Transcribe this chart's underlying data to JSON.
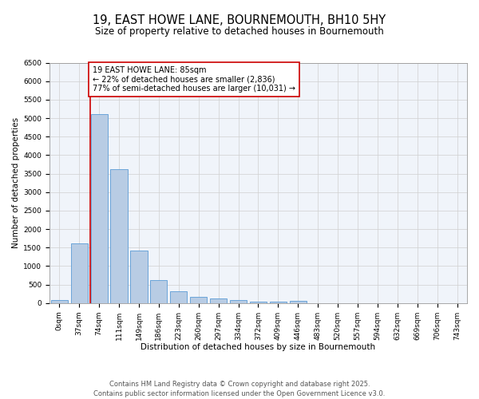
{
  "title_line1": "19, EAST HOWE LANE, BOURNEMOUTH, BH10 5HY",
  "title_line2": "Size of property relative to detached houses in Bournemouth",
  "xlabel": "Distribution of detached houses by size in Bournemouth",
  "ylabel": "Number of detached properties",
  "categories": [
    "0sqm",
    "37sqm",
    "74sqm",
    "111sqm",
    "149sqm",
    "186sqm",
    "223sqm",
    "260sqm",
    "297sqm",
    "334sqm",
    "372sqm",
    "409sqm",
    "446sqm",
    "483sqm",
    "520sqm",
    "557sqm",
    "594sqm",
    "632sqm",
    "669sqm",
    "706sqm",
    "743sqm"
  ],
  "values": [
    75,
    1620,
    5100,
    3620,
    1420,
    610,
    310,
    165,
    130,
    90,
    45,
    30,
    60,
    0,
    0,
    0,
    0,
    0,
    0,
    0,
    0
  ],
  "bar_color": "#b8cce4",
  "bar_edge_color": "#5b9bd5",
  "property_line_color": "#cc0000",
  "annotation_text": "19 EAST HOWE LANE: 85sqm\n← 22% of detached houses are smaller (2,836)\n77% of semi-detached houses are larger (10,031) →",
  "annotation_box_color": "#cc0000",
  "ylim_max": 6500,
  "yticks": [
    0,
    500,
    1000,
    1500,
    2000,
    2500,
    3000,
    3500,
    4000,
    4500,
    5000,
    5500,
    6000,
    6500
  ],
  "grid_color": "#d0d0d0",
  "plot_bg_color": "#f0f4fa",
  "footer_line1": "Contains HM Land Registry data © Crown copyright and database right 2025.",
  "footer_line2": "Contains public sector information licensed under the Open Government Licence v3.0.",
  "title_fontsize": 10.5,
  "subtitle_fontsize": 8.5,
  "axis_label_fontsize": 7.5,
  "tick_fontsize": 6.5,
  "annotation_fontsize": 7,
  "footer_fontsize": 6
}
